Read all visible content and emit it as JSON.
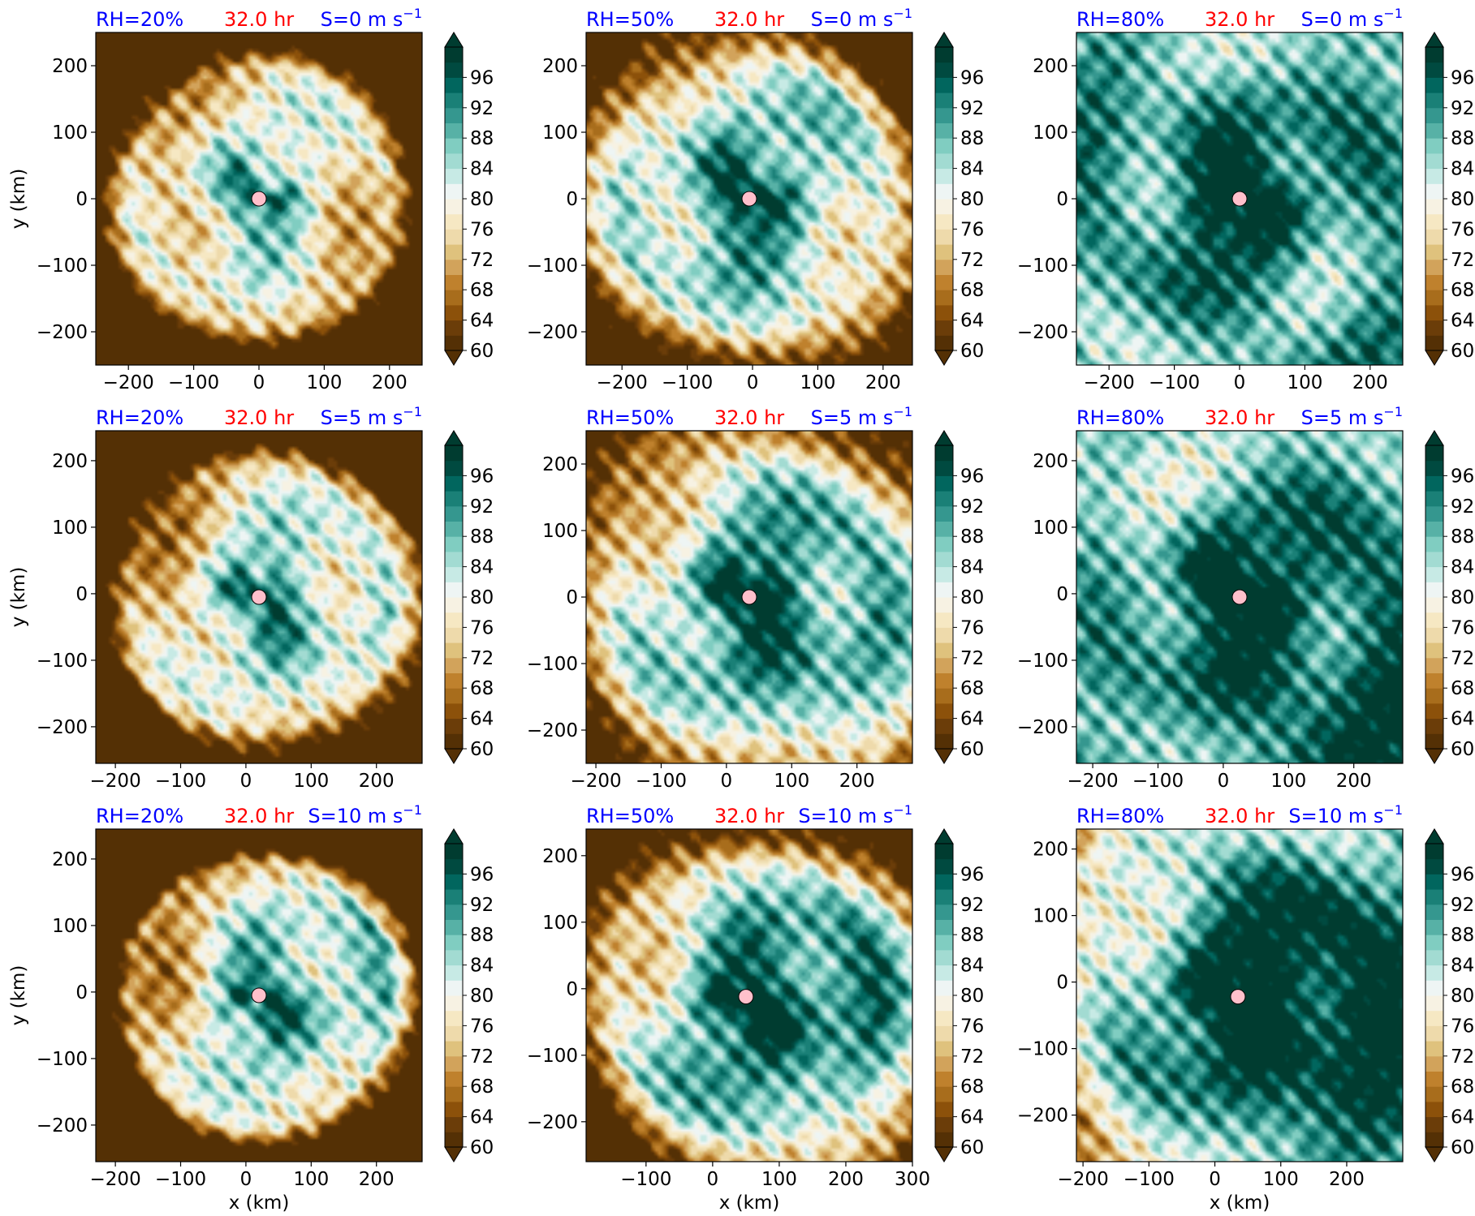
{
  "figure": {
    "colormap": [
      "#543005",
      "#6b3d09",
      "#8c510a",
      "#a86d1c",
      "#bf812d",
      "#d2a35b",
      "#dfc27d",
      "#eedaab",
      "#f6e8c3",
      "#f7f2e3",
      "#eef5f4",
      "#c7eae5",
      "#a2dbd2",
      "#80cdc1",
      "#57b1a6",
      "#35978f",
      "#1a8077",
      "#01665e",
      "#004a40",
      "#003c30"
    ],
    "levels": [
      60,
      62,
      64,
      66,
      68,
      70,
      72,
      74,
      76,
      78,
      80,
      82,
      84,
      86,
      88,
      90,
      92,
      94,
      96,
      98
    ],
    "colorbar_ticks": [
      "60",
      "64",
      "68",
      "72",
      "76",
      "80",
      "84",
      "88",
      "92",
      "96"
    ],
    "center_marker_color": "#ffc0cb"
  },
  "chart_data": [
    {
      "type": "heatmap",
      "rh_label": "RH=20%",
      "time_label": "32.0 hr",
      "shear_base": "S=0 m s",
      "shear_sup": "−1",
      "xlim": [
        -250,
        250
      ],
      "ylim": [
        -250,
        250
      ],
      "xticks": [
        "−200",
        "−100",
        "0",
        "100",
        "200"
      ],
      "yticks": [
        "−200",
        "−100",
        "0",
        "100",
        "200"
      ],
      "xlabel": "",
      "ylabel": "y (km)",
      "center": [
        0,
        0
      ],
      "seed": 11,
      "moist": 0.05,
      "spread": [
        0,
        0
      ],
      "dry_edge": 0.28
    },
    {
      "type": "heatmap",
      "rh_label": "RH=50%",
      "time_label": "32.0 hr",
      "shear_base": "S=0 m s",
      "shear_sup": "−1",
      "xlim": [
        -255,
        245
      ],
      "ylim": [
        -250,
        250
      ],
      "xticks": [
        "−200",
        "−100",
        "0",
        "100",
        "200"
      ],
      "yticks": [
        "−200",
        "−100",
        "0",
        "100",
        "200"
      ],
      "xlabel": "",
      "ylabel": "",
      "center": [
        -5,
        0
      ],
      "seed": 23,
      "moist": 0.22,
      "spread": [
        0,
        0
      ],
      "dry_edge": 0.15
    },
    {
      "type": "heatmap",
      "rh_label": "RH=80%",
      "time_label": "32.0 hr",
      "shear_base": "S=0 m s",
      "shear_sup": "−1",
      "xlim": [
        -250,
        250
      ],
      "ylim": [
        -250,
        250
      ],
      "xticks": [
        "−200",
        "−100",
        "0",
        "100",
        "200"
      ],
      "yticks": [
        "−200",
        "−100",
        "0",
        "100",
        "200"
      ],
      "xlabel": "",
      "ylabel": "",
      "center": [
        0,
        0
      ],
      "seed": 37,
      "moist": 0.42,
      "spread": [
        0,
        0
      ],
      "dry_edge": 0.0
    },
    {
      "type": "heatmap",
      "rh_label": "RH=20%",
      "time_label": "32.0 hr",
      "shear_base": "S=5 m s",
      "shear_sup": "−1",
      "xlim": [
        -230,
        270
      ],
      "ylim": [
        -255,
        245
      ],
      "xticks": [
        "−200",
        "−100",
        "0",
        "100",
        "200"
      ],
      "yticks": [
        "−200",
        "−100",
        "0",
        "100",
        "200"
      ],
      "xlabel": "",
      "ylabel": "y (km)",
      "center": [
        20,
        -5
      ],
      "seed": 41,
      "moist": 0.1,
      "spread": [
        1,
        -0.4
      ],
      "dry_edge": 0.25
    },
    {
      "type": "heatmap",
      "rh_label": "RH=50%",
      "time_label": "32.0 hr",
      "shear_base": "S=5 m s",
      "shear_sup": "−1",
      "xlim": [
        -215,
        285
      ],
      "ylim": [
        -250,
        250
      ],
      "xticks": [
        "−200",
        "−100",
        "0",
        "100",
        "200"
      ],
      "yticks": [
        "−200",
        "−100",
        "0",
        "100",
        "200"
      ],
      "xlabel": "",
      "ylabel": "",
      "center": [
        35,
        0
      ],
      "seed": 53,
      "moist": 0.28,
      "spread": [
        1,
        -0.5
      ],
      "dry_edge": 0.1
    },
    {
      "type": "heatmap",
      "rh_label": "RH=80%",
      "time_label": "32.0 hr",
      "shear_base": "S=5 m s",
      "shear_sup": "−1",
      "xlim": [
        -225,
        275
      ],
      "ylim": [
        -255,
        245
      ],
      "xticks": [
        "−200",
        "−100",
        "0",
        "100",
        "200"
      ],
      "yticks": [
        "−200",
        "−100",
        "0",
        "100",
        "200"
      ],
      "xlabel": "",
      "ylabel": "",
      "center": [
        25,
        -5
      ],
      "seed": 67,
      "moist": 0.45,
      "spread": [
        0.6,
        -0.5
      ],
      "dry_edge": 0.0
    },
    {
      "type": "heatmap",
      "rh_label": "RH=20%",
      "time_label": "32.0 hr",
      "shear_base": "S=10 m s",
      "shear_sup": "−1",
      "xlim": [
        -230,
        270
      ],
      "ylim": [
        -255,
        245
      ],
      "xticks": [
        "−200",
        "−100",
        "0",
        "100",
        "200"
      ],
      "yticks": [
        "−200",
        "−100",
        "0",
        "100",
        "200"
      ],
      "xlabel": "x (km)",
      "ylabel": "y (km)",
      "center": [
        20,
        -5
      ],
      "seed": 71,
      "moist": 0.12,
      "spread": [
        1.4,
        -0.3
      ],
      "dry_edge": 0.35
    },
    {
      "type": "heatmap",
      "rh_label": "RH=50%",
      "time_label": "32.0 hr",
      "shear_base": "S=10 m s",
      "shear_sup": "−1",
      "xlim": [
        -190,
        300
      ],
      "ylim": [
        -260,
        240
      ],
      "xticks": [
        "−100",
        "0",
        "100",
        "200",
        "300"
      ],
      "yticks": [
        "−200",
        "−100",
        "0",
        "100",
        "200"
      ],
      "xlabel": "x (km)",
      "ylabel": "",
      "center": [
        50,
        -12
      ],
      "seed": 83,
      "moist": 0.3,
      "spread": [
        1.4,
        -0.6
      ],
      "dry_edge": 0.15
    },
    {
      "type": "heatmap",
      "rh_label": "RH=80%",
      "time_label": "32.0 hr",
      "shear_base": "S=10 m s",
      "shear_sup": "−1",
      "xlim": [
        -210,
        285
      ],
      "ylim": [
        -270,
        230
      ],
      "xticks": [
        "−200",
        "−100",
        "0",
        "100",
        "200"
      ],
      "yticks": [
        "−200",
        "−100",
        "0",
        "100",
        "200"
      ],
      "xlabel": "x (km)",
      "ylabel": "",
      "center": [
        35,
        -22
      ],
      "seed": 97,
      "moist": 0.5,
      "spread": [
        1.6,
        -0.2
      ],
      "dry_edge": 0.05
    }
  ]
}
